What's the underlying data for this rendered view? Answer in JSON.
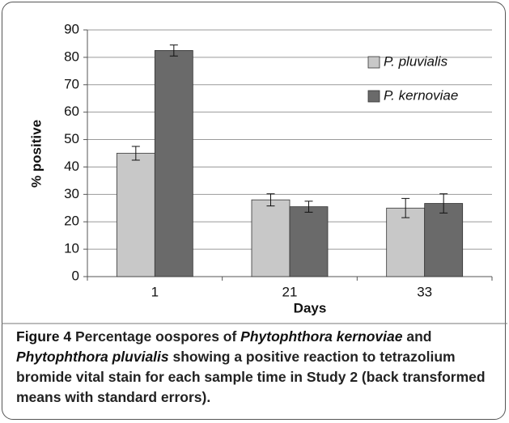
{
  "chart_data": {
    "type": "bar",
    "categories": [
      "1",
      "21",
      "33"
    ],
    "series": [
      {
        "name": "P. pluvialis",
        "color": "#c8c8c8",
        "values": [
          45,
          28,
          25
        ],
        "errors": [
          2.5,
          2.2,
          3.5
        ]
      },
      {
        "name": "P. kernoviae",
        "color": "#6a6a6a",
        "values": [
          82.5,
          25.5,
          26.7
        ],
        "errors": [
          2,
          2,
          3.5
        ]
      }
    ],
    "ylim": [
      0,
      90
    ],
    "yticks": [
      0,
      10,
      20,
      30,
      40,
      50,
      60,
      70,
      80,
      90
    ],
    "grid": true,
    "xlabel": "Days",
    "ylabel": "% positive",
    "legend": "upper right",
    "caption": [
      {
        "text": "Figure 4",
        "style": "bold"
      },
      {
        "text": " Percentage oospores of ",
        "style": "normal"
      },
      {
        "text": "Phytophthora kernoviae",
        "style": "italic"
      },
      {
        "text": " and ",
        "style": "normal"
      },
      {
        "text": "Phytophthora pluvialis",
        "style": "italic"
      },
      {
        "text": " showing a positive reaction to tetrazolium bromide vital stain for each sample time in Study 2 (back transformed means with standard errors).",
        "style": "normal"
      }
    ]
  }
}
